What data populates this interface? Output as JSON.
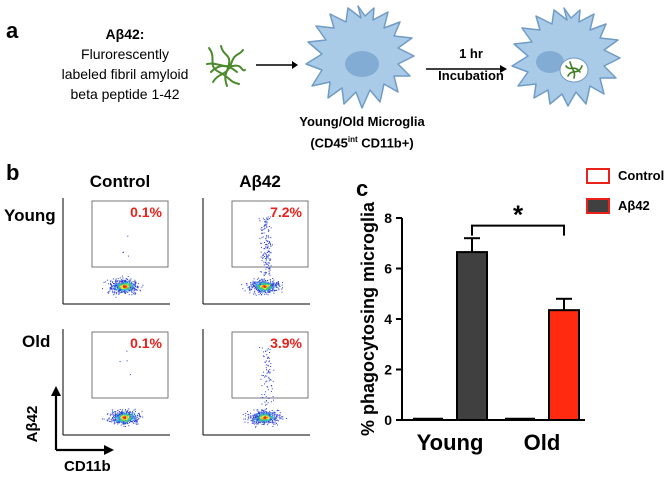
{
  "panel_a": {
    "letter": "a",
    "abeta_title": "Aβ42:",
    "abeta_desc_lines": [
      "Flurorescently",
      "labeled fibril amyloid",
      "beta peptide 1-42"
    ],
    "incubation_time": "1 hr",
    "incubation_label": "Incubation",
    "microglia_label": "Young/Old Microglia",
    "marker_prefix": "(CD45",
    "marker_sup": "int",
    "marker_suffix": " CD11b+)"
  },
  "panel_b": {
    "letter": "b",
    "col_headers": [
      "Control",
      "Aβ42"
    ],
    "row_labels": [
      "Young",
      "Old"
    ],
    "gate_values": {
      "young_control": "0.1%",
      "young_abeta": "7.2%",
      "old_control": "0.1%",
      "old_abeta": "3.9%"
    },
    "y_axis_label": "Aβ42",
    "x_axis_label": "CD11b"
  },
  "panel_c": {
    "letter": "c",
    "legend": [
      {
        "label": "Control",
        "fill": "#ffffff",
        "stroke": "#e8211b"
      },
      {
        "label": "Aβ42",
        "fill": "#404040",
        "stroke": "#e8211b"
      }
    ],
    "significance": "*",
    "colors": {
      "young_abeta": "#404040",
      "old_abeta": "#ff2a10",
      "axis": "#000000"
    }
  },
  "chart_data": {
    "type": "bar",
    "title": "",
    "xlabel": "",
    "ylabel": "% phagocytosing microglia",
    "ylim": [
      0,
      8
    ],
    "yticks": [
      "0",
      "2",
      "4",
      "6",
      "8"
    ],
    "categories": [
      "Young",
      "Old"
    ],
    "series": [
      {
        "name": "Control",
        "values": [
          0.05,
          0.05
        ],
        "errors": [
          0,
          0
        ]
      },
      {
        "name": "Aβ42",
        "values": [
          6.65,
          4.35
        ],
        "errors": [
          0.55,
          0.45
        ]
      }
    ]
  }
}
